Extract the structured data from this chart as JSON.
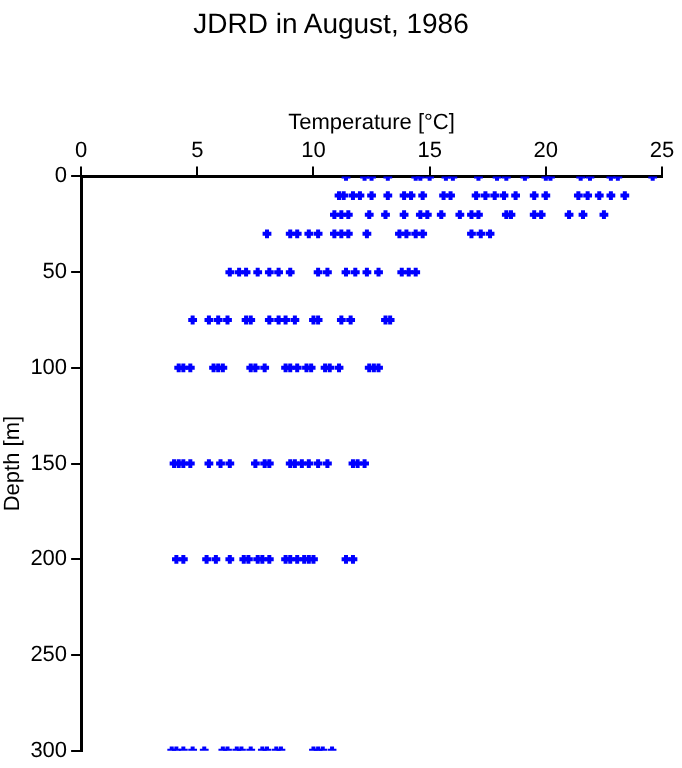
{
  "chart_data": {
    "type": "scatter",
    "title": "JDRD in August, 1986",
    "xlabel": "Temperature [°C]",
    "ylabel": "Depth [m]",
    "color": "#0000ff",
    "marker": "cross",
    "grid": false,
    "legend": false,
    "xlim": [
      0,
      25
    ],
    "xticks": [
      0,
      5,
      10,
      15,
      20,
      25
    ],
    "ylim": [
      300,
      0
    ],
    "yticks": [
      0,
      50,
      100,
      150,
      200,
      250,
      300
    ],
    "x": [
      11.4,
      12.2,
      12.5,
      13.2,
      14.4,
      14.6,
      15.0,
      15.7,
      16.0,
      17.1,
      17.9,
      18.3,
      19.1,
      20.0,
      20.2,
      21.5,
      21.9,
      22.8,
      23.1,
      24.6,
      11.1,
      11.3,
      11.7,
      12.0,
      12.5,
      13.2,
      13.9,
      14.2,
      14.7,
      15.6,
      15.9,
      17.0,
      17.4,
      17.8,
      18.2,
      18.7,
      19.5,
      20.0,
      21.4,
      21.8,
      22.3,
      22.8,
      23.4,
      10.9,
      11.2,
      11.5,
      12.4,
      13.1,
      13.9,
      14.6,
      14.9,
      15.5,
      16.3,
      16.8,
      17.1,
      18.3,
      18.5,
      19.5,
      19.8,
      21.0,
      21.6,
      22.5,
      8.0,
      9.0,
      9.3,
      9.8,
      10.2,
      10.9,
      11.2,
      11.5,
      12.3,
      13.7,
      14.0,
      14.4,
      14.7,
      16.8,
      17.2,
      17.6,
      6.4,
      6.8,
      7.1,
      7.6,
      8.1,
      8.5,
      9.0,
      10.2,
      10.6,
      11.4,
      11.8,
      12.3,
      12.8,
      13.8,
      14.1,
      14.4,
      4.8,
      5.5,
      5.9,
      6.3,
      7.1,
      7.3,
      8.1,
      8.5,
      8.8,
      9.2,
      10.0,
      10.2,
      11.2,
      11.6,
      13.1,
      13.3,
      4.2,
      4.4,
      4.7,
      5.7,
      5.9,
      6.1,
      7.3,
      7.5,
      7.9,
      8.8,
      9.0,
      9.3,
      9.7,
      9.9,
      10.5,
      10.7,
      11.1,
      12.4,
      12.6,
      12.8,
      4.0,
      4.2,
      4.4,
      4.7,
      5.5,
      6.0,
      6.4,
      7.5,
      7.9,
      8.1,
      9.0,
      9.2,
      9.5,
      9.8,
      10.2,
      10.6,
      11.7,
      11.9,
      12.2,
      4.1,
      4.4,
      5.4,
      5.8,
      6.4,
      7.0,
      7.2,
      7.6,
      7.8,
      8.1,
      8.8,
      9.0,
      9.3,
      9.6,
      9.8,
      10.0,
      11.4,
      11.7,
      3.9,
      4.1,
      4.4,
      4.8,
      5.3,
      6.1,
      6.3,
      6.7,
      6.9,
      7.3,
      7.8,
      8.0,
      8.4,
      8.6,
      10.0,
      10.2,
      10.4,
      10.8
    ],
    "values": [
      0,
      0,
      0,
      0,
      0,
      0,
      0,
      0,
      0,
      0,
      0,
      0,
      0,
      0,
      0,
      0,
      0,
      0,
      0,
      0,
      10,
      10,
      10,
      10,
      10,
      10,
      10,
      10,
      10,
      10,
      10,
      10,
      10,
      10,
      10,
      10,
      10,
      10,
      10,
      10,
      10,
      10,
      10,
      20,
      20,
      20,
      20,
      20,
      20,
      20,
      20,
      20,
      20,
      20,
      20,
      20,
      20,
      20,
      20,
      20,
      20,
      20,
      30,
      30,
      30,
      30,
      30,
      30,
      30,
      30,
      30,
      30,
      30,
      30,
      30,
      30,
      30,
      30,
      50,
      50,
      50,
      50,
      50,
      50,
      50,
      50,
      50,
      50,
      50,
      50,
      50,
      50,
      50,
      50,
      75,
      75,
      75,
      75,
      75,
      75,
      75,
      75,
      75,
      75,
      75,
      75,
      75,
      75,
      75,
      75,
      100,
      100,
      100,
      100,
      100,
      100,
      100,
      100,
      100,
      100,
      100,
      100,
      100,
      100,
      100,
      100,
      100,
      100,
      100,
      100,
      150,
      150,
      150,
      150,
      150,
      150,
      150,
      150,
      150,
      150,
      150,
      150,
      150,
      150,
      150,
      150,
      150,
      150,
      150,
      200,
      200,
      200,
      200,
      200,
      200,
      200,
      200,
      200,
      200,
      200,
      200,
      200,
      200,
      200,
      200,
      200,
      200,
      300,
      300,
      300,
      300,
      300,
      300,
      300,
      300,
      300,
      300,
      300,
      300,
      300,
      300,
      300,
      300,
      300,
      300
    ]
  }
}
